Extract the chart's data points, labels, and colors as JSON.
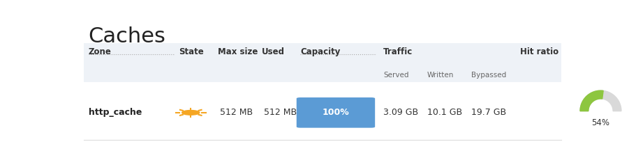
{
  "title": "Caches",
  "bg_color": "#ffffff",
  "header_bg": "#eef2f7",
  "header_text_color": "#333333",
  "row": {
    "zone": "http_cache",
    "max_size": "512 MB",
    "used": "512 MB",
    "capacity_pct": "100%",
    "capacity_bar_color": "#5b9bd5",
    "served": "3.09 GB",
    "written": "10.1 GB",
    "bypassed": "19.7 GB",
    "hit_ratio": 54,
    "hit_ratio_label": "54%",
    "gauge_color": "#8dc63f",
    "gauge_bg_color": "#d9d9d9"
  },
  "col_x": {
    "zone": 0.02,
    "state": 0.205,
    "max_size": 0.285,
    "used": 0.375,
    "capacity": 0.455,
    "served": 0.625,
    "written": 0.715,
    "bypassed": 0.805,
    "hit_ratio": 0.905
  },
  "sun_color": "#f5a623",
  "separator_color": "#dddddd",
  "title_fontsize": 22,
  "header_fontsize": 8.5,
  "sub_fontsize": 7.5,
  "data_fontsize": 9
}
